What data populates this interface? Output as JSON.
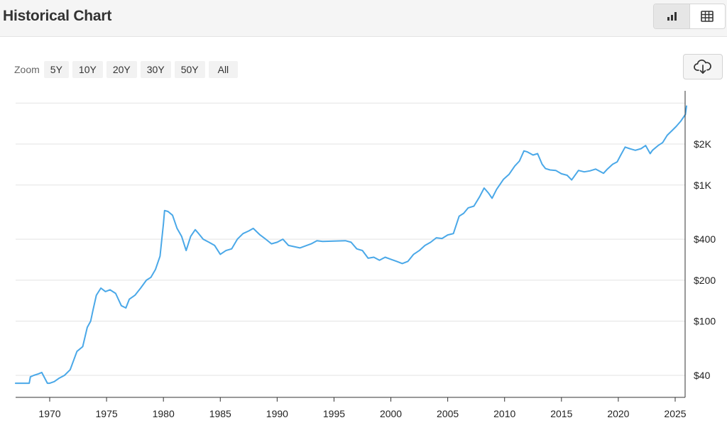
{
  "header": {
    "title": "Historical Chart",
    "view_options": [
      {
        "name": "chart-view",
        "icon": "bar-chart-icon",
        "active": true
      },
      {
        "name": "table-view",
        "icon": "table-icon",
        "active": false
      }
    ]
  },
  "zoom": {
    "label": "Zoom",
    "options": [
      "5Y",
      "10Y",
      "20Y",
      "30Y",
      "50Y",
      "All"
    ]
  },
  "download": {
    "icon": "cloud-download-icon"
  },
  "colors": {
    "line": "#4aa8e8",
    "grid": "#e3e3e3",
    "axis": "#333333"
  },
  "chart_data": {
    "type": "line",
    "title": "",
    "xlabel": "",
    "ylabel": "",
    "y_scale": "log",
    "xlim": [
      1967,
      2026
    ],
    "ylim": [
      30,
      4000
    ],
    "grid": true,
    "x_ticks": [
      1970,
      1975,
      1980,
      1985,
      1990,
      1995,
      2000,
      2005,
      2010,
      2015,
      2020,
      2025
    ],
    "y_ticks": [
      {
        "value": 40,
        "label": "$40"
      },
      {
        "value": 100,
        "label": "$100"
      },
      {
        "value": 200,
        "label": "$200"
      },
      {
        "value": 400,
        "label": "$400"
      },
      {
        "value": 1000,
        "label": "$1K"
      },
      {
        "value": 2000,
        "label": "$2K"
      },
      {
        "value": 4000,
        "label": ""
      }
    ],
    "series": [
      {
        "x": [
          1967.0,
          1968.2,
          1968.3,
          1968.6,
          1969.0,
          1969.3,
          1969.8,
          1970.0,
          1970.4,
          1970.8,
          1971.3,
          1971.8,
          1972.4,
          1972.9,
          1973.3,
          1973.6,
          1973.8,
          1974.1,
          1974.5,
          1974.9,
          1975.3,
          1975.8,
          1976.3,
          1976.7,
          1977.0,
          1977.5,
          1978.0,
          1978.5,
          1978.9,
          1979.3,
          1979.7,
          1980.0,
          1980.1,
          1980.4,
          1980.8,
          1981.2,
          1981.6,
          1982.0,
          1982.4,
          1982.8,
          1983.1,
          1983.5,
          1984.0,
          1984.5,
          1985.0,
          1985.5,
          1986.0,
          1986.5,
          1987.0,
          1987.5,
          1987.9,
          1988.5,
          1989.0,
          1989.5,
          1990.0,
          1990.5,
          1991.0,
          1992.0,
          1993.0,
          1993.5,
          1994.0,
          1995.0,
          1996.0,
          1996.5,
          1997.0,
          1997.5,
          1998.0,
          1998.5,
          1999.0,
          1999.5,
          2000.0,
          2000.5,
          2001.0,
          2001.5,
          2002.0,
          2002.5,
          2003.0,
          2003.5,
          2004.0,
          2004.5,
          2005.0,
          2005.5,
          2006.0,
          2006.4,
          2006.8,
          2007.3,
          2007.8,
          2008.2,
          2008.6,
          2008.9,
          2009.3,
          2009.9,
          2010.4,
          2010.9,
          2011.3,
          2011.7,
          2012.0,
          2012.5,
          2012.9,
          2013.3,
          2013.6,
          2014.0,
          2014.5,
          2015.0,
          2015.5,
          2015.9,
          2016.5,
          2017.0,
          2017.5,
          2018.0,
          2018.7,
          2019.0,
          2019.5,
          2019.9,
          2020.2,
          2020.6,
          2021.0,
          2021.5,
          2022.0,
          2022.4,
          2022.8,
          2023.0,
          2023.5,
          2023.9,
          2024.3,
          2024.7,
          2025.1,
          2025.5,
          2025.9,
          2026.0
        ],
        "y": [
          35,
          35,
          39,
          40,
          41,
          42,
          35,
          35,
          36,
          38,
          40,
          44,
          60,
          65,
          90,
          100,
          120,
          155,
          175,
          165,
          170,
          160,
          130,
          125,
          145,
          155,
          175,
          200,
          210,
          240,
          300,
          520,
          650,
          640,
          600,
          480,
          420,
          330,
          420,
          470,
          440,
          400,
          380,
          360,
          310,
          330,
          340,
          400,
          440,
          460,
          480,
          430,
          400,
          370,
          380,
          400,
          360,
          345,
          370,
          390,
          385,
          388,
          390,
          380,
          340,
          330,
          290,
          295,
          280,
          295,
          285,
          275,
          265,
          275,
          310,
          330,
          360,
          380,
          410,
          405,
          430,
          440,
          590,
          620,
          680,
          700,
          820,
          950,
          870,
          800,
          930,
          1100,
          1200,
          1380,
          1500,
          1780,
          1750,
          1660,
          1700,
          1420,
          1320,
          1290,
          1280,
          1210,
          1180,
          1090,
          1280,
          1250,
          1270,
          1310,
          1220,
          1300,
          1420,
          1480,
          1650,
          1900,
          1850,
          1800,
          1850,
          1950,
          1700,
          1800,
          1950,
          2050,
          2320,
          2500,
          2700,
          2950,
          3300,
          3800
        ]
      }
    ]
  }
}
